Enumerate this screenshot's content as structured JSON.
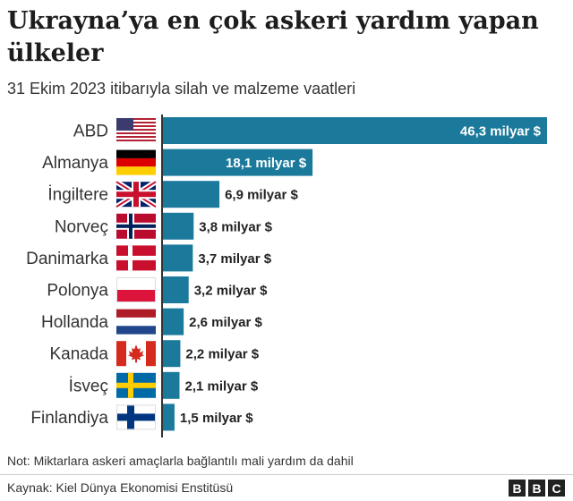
{
  "title": "Ukrayna’ya en çok askeri yardım yapan ülkeler",
  "subtitle": "31 Ekim 2023 itibarıyla silah ve malzeme vaatleri",
  "note": "Not: Miktarlara askeri amaçlarla bağlantılı mali yardım da dahil",
  "source": "Kaynak: Kiel Dünya Ekonomisi Enstitüsü",
  "logo": {
    "letters": [
      "B",
      "B",
      "C"
    ]
  },
  "colors": {
    "bar": "#1b7a9c",
    "label_inside": "#ffffff",
    "label_outside": "#222222"
  },
  "chart_data": {
    "type": "bar",
    "orientation": "horizontal",
    "title": "Ukrayna’ya en çok askeri yardım yapan ülkeler",
    "subtitle": "31 Ekim 2023 itibarıyla silah ve malzeme vaatleri",
    "categories": [
      "ABD",
      "Almanya",
      "İngiltere",
      "Norveç",
      "Danimarka",
      "Polonya",
      "Hollanda",
      "Kanada",
      "İsveç",
      "Finlandiya"
    ],
    "values": [
      46.3,
      18.1,
      6.9,
      3.8,
      3.7,
      3.2,
      2.6,
      2.2,
      2.1,
      1.5
    ],
    "value_labels": [
      "46,3 milyar $",
      "18,1 milyar $",
      "6,9 milyar $",
      "3,8 milyar $",
      "3,7 milyar $",
      "3,2 milyar $",
      "2,6 milyar $",
      "2,2 milyar $",
      "2,1 milyar $",
      "1,5 milyar $"
    ],
    "flags": [
      "us-flag-icon",
      "germany-flag-icon",
      "uk-flag-icon",
      "norway-flag-icon",
      "denmark-flag-icon",
      "poland-flag-icon",
      "netherlands-flag-icon",
      "canada-flag-icon",
      "sweden-flag-icon",
      "finland-flag-icon"
    ],
    "xlim": [
      0,
      46.3
    ],
    "grid": false,
    "legend": "none"
  }
}
